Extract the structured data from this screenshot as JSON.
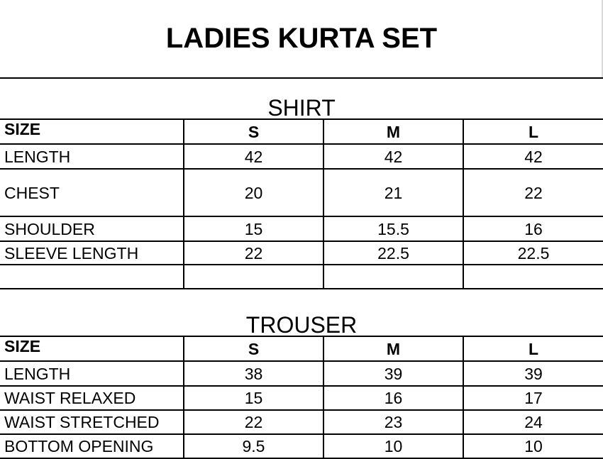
{
  "title": "LADIES KURTA SET",
  "sections": [
    {
      "name": "SHIRT",
      "header": [
        "SIZE",
        "S",
        "M",
        "L"
      ],
      "rows": [
        [
          "LENGTH",
          "42",
          "42",
          "42"
        ],
        [
          "CHEST",
          "20",
          "21",
          "22"
        ],
        [
          "SHOULDER",
          "15",
          "15.5",
          "16"
        ],
        [
          "SLEEVE LENGTH",
          "22",
          "22.5",
          "22.5"
        ],
        [
          "",
          "",
          "",
          ""
        ]
      ]
    },
    {
      "name": "TROUSER",
      "header": [
        "SIZE",
        "S",
        "M",
        "L"
      ],
      "rows": [
        [
          "LENGTH",
          "38",
          "39",
          "39"
        ],
        [
          "WAIST RELAXED",
          "15",
          "16",
          "17"
        ],
        [
          "WAIST STRETCHED",
          "22",
          "23",
          "24"
        ],
        [
          "BOTTOM OPENING",
          "9.5",
          "10",
          "10"
        ]
      ]
    }
  ]
}
